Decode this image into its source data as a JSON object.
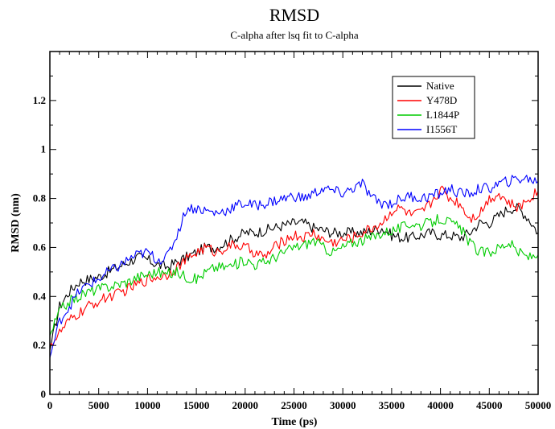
{
  "chart_data": {
    "type": "line",
    "title": "RMSD",
    "subtitle": "C-alpha after lsq fit to C-alpha",
    "xlabel": "Time (ps)",
    "ylabel": "RMSD (nm)",
    "xlim": [
      0,
      50000
    ],
    "ylim": [
      0,
      1.4
    ],
    "x_ticks": [
      "0",
      "5000",
      "10000",
      "15000",
      "20000",
      "25000",
      "30000",
      "35000",
      "40000",
      "45000",
      "50000"
    ],
    "y_ticks": [
      "0",
      "0.2",
      "0.4",
      "0.6",
      "0.8",
      "1",
      "1.2"
    ],
    "legend_position": "top-right",
    "grid": false,
    "x": [
      0,
      1000,
      2000,
      3000,
      4000,
      5000,
      6000,
      7000,
      8000,
      9000,
      10000,
      11000,
      12000,
      13000,
      14000,
      15000,
      16000,
      17000,
      18000,
      19000,
      20000,
      21000,
      22000,
      23000,
      24000,
      25000,
      26000,
      27000,
      28000,
      29000,
      30000,
      31000,
      32000,
      33000,
      34000,
      35000,
      36000,
      37000,
      38000,
      39000,
      40000,
      41000,
      42000,
      43000,
      44000,
      45000,
      46000,
      47000,
      48000,
      49000,
      50000
    ],
    "series": [
      {
        "name": "Native",
        "color": "#000000",
        "values": [
          0.18,
          0.36,
          0.42,
          0.46,
          0.47,
          0.48,
          0.5,
          0.52,
          0.54,
          0.56,
          0.55,
          0.53,
          0.52,
          0.54,
          0.56,
          0.58,
          0.6,
          0.6,
          0.62,
          0.64,
          0.66,
          0.66,
          0.67,
          0.68,
          0.69,
          0.7,
          0.7,
          0.68,
          0.67,
          0.66,
          0.66,
          0.66,
          0.66,
          0.67,
          0.68,
          0.65,
          0.64,
          0.64,
          0.65,
          0.66,
          0.65,
          0.65,
          0.64,
          0.66,
          0.7,
          0.7,
          0.73,
          0.76,
          0.76,
          0.72,
          0.66
        ]
      },
      {
        "name": "Y478D",
        "color": "#ff0000",
        "values": [
          0.2,
          0.25,
          0.3,
          0.33,
          0.36,
          0.38,
          0.4,
          0.41,
          0.43,
          0.45,
          0.47,
          0.48,
          0.49,
          0.52,
          0.55,
          0.58,
          0.6,
          0.58,
          0.6,
          0.61,
          0.6,
          0.58,
          0.56,
          0.6,
          0.63,
          0.65,
          0.64,
          0.66,
          0.63,
          0.62,
          0.63,
          0.64,
          0.66,
          0.68,
          0.7,
          0.75,
          0.76,
          0.73,
          0.74,
          0.78,
          0.84,
          0.8,
          0.78,
          0.72,
          0.74,
          0.8,
          0.82,
          0.78,
          0.76,
          0.8,
          0.83
        ]
      },
      {
        "name": "L1844P",
        "color": "#00cc00",
        "values": [
          0.24,
          0.34,
          0.38,
          0.4,
          0.42,
          0.43,
          0.44,
          0.45,
          0.46,
          0.48,
          0.49,
          0.5,
          0.49,
          0.5,
          0.48,
          0.47,
          0.5,
          0.52,
          0.52,
          0.53,
          0.55,
          0.53,
          0.54,
          0.56,
          0.58,
          0.6,
          0.61,
          0.63,
          0.6,
          0.58,
          0.6,
          0.62,
          0.63,
          0.64,
          0.66,
          0.67,
          0.68,
          0.7,
          0.69,
          0.7,
          0.72,
          0.7,
          0.68,
          0.62,
          0.58,
          0.58,
          0.6,
          0.62,
          0.58,
          0.56,
          0.57
        ]
      },
      {
        "name": "I1556T",
        "color": "#0000ff",
        "values": [
          0.15,
          0.3,
          0.36,
          0.42,
          0.45,
          0.47,
          0.5,
          0.52,
          0.55,
          0.57,
          0.58,
          0.55,
          0.56,
          0.65,
          0.76,
          0.76,
          0.75,
          0.74,
          0.75,
          0.77,
          0.78,
          0.77,
          0.78,
          0.79,
          0.8,
          0.81,
          0.8,
          0.82,
          0.84,
          0.83,
          0.82,
          0.84,
          0.86,
          0.8,
          0.78,
          0.78,
          0.8,
          0.81,
          0.8,
          0.81,
          0.82,
          0.84,
          0.82,
          0.82,
          0.84,
          0.84,
          0.86,
          0.87,
          0.88,
          0.88,
          0.87
        ]
      }
    ]
  }
}
